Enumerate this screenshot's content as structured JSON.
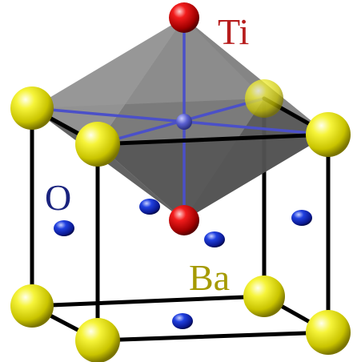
{
  "labels": {
    "ti": "Ti",
    "o": "O",
    "ba": "Ba"
  },
  "colors": {
    "ti_label": "#b71c1c",
    "o_label": "#1a237e",
    "ba_label": "#a59a00",
    "ti_atom": "#e01010",
    "o_atom": "#1030d0",
    "ba_atom": "#f2f21c",
    "octahedron_fill": "#555555",
    "bond": "#4b50c8",
    "cell_edge": "#000000"
  }
}
